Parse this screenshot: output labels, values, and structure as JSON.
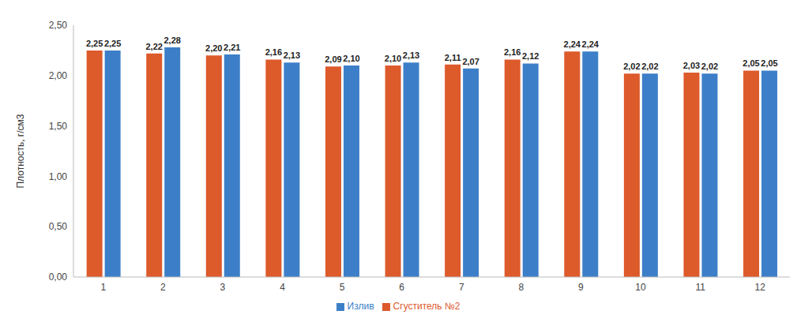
{
  "chart_data": {
    "type": "bar",
    "y_label": "Плотность, г/см3",
    "categories": [
      "1",
      "2",
      "3",
      "4",
      "5",
      "6",
      "7",
      "8",
      "9",
      "10",
      "11",
      "12"
    ],
    "series": [
      {
        "name": "Сгуститель №2",
        "color": "#dd5a2b",
        "values": [
          2.25,
          2.22,
          2.2,
          2.16,
          2.09,
          2.1,
          2.11,
          2.16,
          2.24,
          2.02,
          2.03,
          2.05
        ],
        "value_labels": [
          "2,25",
          "2,22",
          "2,20",
          "2,16",
          "2,09",
          "2,10",
          "2,11",
          "2,16",
          "2,24",
          "2,02",
          "2,03",
          "2,05"
        ]
      },
      {
        "name": "Излив",
        "color": "#3c7fc8",
        "values": [
          2.25,
          2.28,
          2.21,
          2.13,
          2.1,
          2.13,
          2.07,
          2.12,
          2.24,
          2.02,
          2.02,
          2.05
        ],
        "value_labels": [
          "2,25",
          "2,28",
          "2,21",
          "2,13",
          "2,10",
          "2,13",
          "2,07",
          "2,12",
          "2,24",
          "2,02",
          "2,02",
          "2,05"
        ]
      }
    ],
    "ylim": [
      0,
      2.5
    ],
    "yticks": [
      {
        "value": 0,
        "label": "0,00"
      },
      {
        "value": 0.5,
        "label": "0,50"
      },
      {
        "value": 1,
        "label": "1,00"
      },
      {
        "value": 1.5,
        "label": "1,50"
      },
      {
        "value": 2,
        "label": "2,00"
      },
      {
        "value": 2.5,
        "label": "2,50"
      }
    ],
    "grid": false,
    "legend": "bottom",
    "data_labels": true
  }
}
